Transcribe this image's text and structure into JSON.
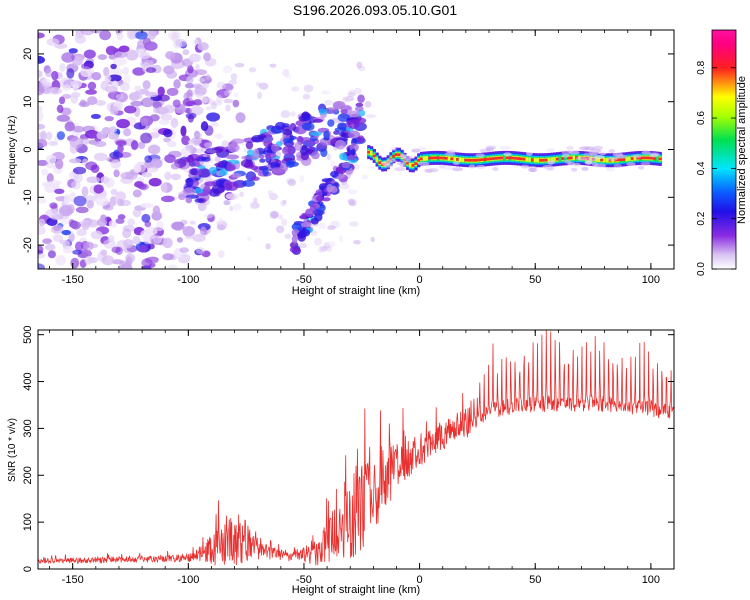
{
  "figure_title": "S196.2026.093.05.10.G01",
  "chart_data": [
    {
      "type": "heatmap",
      "panel": "top",
      "xlabel": "Height of straight line (km)",
      "ylabel": "Frequency (Hz)",
      "xlim": [
        -165,
        110
      ],
      "ylim": [
        -25,
        25
      ],
      "xticks": [
        -150,
        -100,
        -50,
        0,
        50,
        100
      ],
      "yticks": [
        -20,
        -10,
        0,
        10,
        20
      ],
      "colorbar": {
        "label": "Normalized spectral amplitude",
        "range": [
          0.0,
          0.95
        ],
        "ticks": [
          0.0,
          0.2,
          0.4,
          0.6,
          0.8
        ],
        "colormap": "rainbow (white-violet-blue-cyan-green-yellow-red-magenta)"
      },
      "features": [
        {
          "name": "noise",
          "x_range": [
            -165,
            -95
          ],
          "freq_range": [
            -25,
            25
          ],
          "amplitude": "0.05-0.2"
        },
        {
          "name": "upper_branch",
          "x_start": -100,
          "x_end": -25,
          "freq_start": -7,
          "freq_end": 7,
          "amplitude": "0.1-0.35"
        },
        {
          "name": "lower_branch",
          "x_start": -55,
          "x_end": -28,
          "freq_start": -20,
          "freq_end": 0,
          "amplitude": "0.1-0.3"
        },
        {
          "name": "carrier_line",
          "x_start": -22,
          "x_end": 105,
          "freq": -2,
          "amplitude": "0.8-0.95"
        }
      ]
    },
    {
      "type": "line",
      "panel": "bottom",
      "xlabel": "Height of straight line (km)",
      "ylabel": "SNR (10 * v/v)",
      "xlim": [
        -165,
        110
      ],
      "ylim": [
        0,
        510
      ],
      "xticks": [
        -150,
        -100,
        -50,
        0,
        50,
        100
      ],
      "yticks": [
        0,
        100,
        200,
        300,
        400,
        500
      ],
      "color": "#e8302f",
      "series": [
        {
          "name": "SNR",
          "x": [
            -165,
            -150,
            -130,
            -110,
            -100,
            -95,
            -90,
            -85,
            -80,
            -78,
            -75,
            -70,
            -65,
            -60,
            -55,
            -50,
            -45,
            -40,
            -35,
            -30,
            -25,
            -20,
            -15,
            -10,
            -5,
            0,
            5,
            10,
            15,
            20,
            25,
            30,
            40,
            50,
            60,
            70,
            80,
            90,
            100,
            108
          ],
          "base": [
            18,
            18,
            20,
            22,
            25,
            30,
            40,
            55,
            62,
            65,
            60,
            45,
            35,
            30,
            28,
            30,
            40,
            60,
            85,
            110,
            140,
            170,
            195,
            215,
            235,
            250,
            265,
            285,
            300,
            315,
            330,
            345,
            355,
            360,
            360,
            360,
            360,
            355,
            350,
            345
          ],
          "spike": [
            10,
            10,
            12,
            12,
            15,
            25,
            55,
            80,
            95,
            100,
            75,
            45,
            25,
            20,
            20,
            25,
            55,
            85,
            120,
            160,
            180,
            150,
            120,
            90,
            70,
            60,
            55,
            55,
            55,
            60,
            70,
            120,
            140,
            150,
            150,
            150,
            145,
            140,
            130,
            100
          ]
        }
      ]
    }
  ]
}
